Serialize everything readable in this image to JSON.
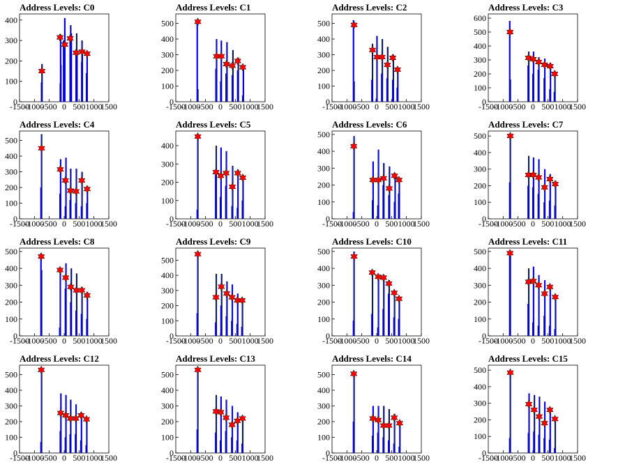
{
  "chart_data": [
    {
      "type": "bar",
      "title": "Address Levels: C0",
      "xlim": [
        -1500,
        1500
      ],
      "ylim": [
        0,
        430
      ],
      "yticks": [
        0,
        100,
        200,
        300,
        400
      ],
      "xticks": [
        -1500,
        -1000,
        -500,
        0,
        500,
        1000,
        1500
      ],
      "bars": {
        "x": [
          -760,
          -745,
          -130,
          -120,
          -110,
          -20,
          20,
          200,
          220,
          240,
          400,
          420,
          430,
          590,
          600,
          610,
          750,
          770
        ],
        "y": [
          95,
          185,
          90,
          330,
          180,
          300,
          410,
          300,
          375,
          335,
          250,
          335,
          240,
          195,
          300,
          240,
          140,
          240
        ]
      },
      "peaks": {
        "x": [
          -750,
          -140,
          20,
          200,
          400,
          600,
          770
        ],
        "y": [
          150,
          315,
          280,
          310,
          240,
          245,
          235
        ]
      }
    },
    {
      "type": "bar",
      "title": "Address Levels: C1",
      "xlim": [
        -1500,
        1500
      ],
      "ylim": [
        0,
        560
      ],
      "yticks": [
        0,
        100,
        200,
        300,
        400,
        500
      ],
      "xticks": [
        -1500,
        -1000,
        -500,
        0,
        500,
        1000,
        1500
      ],
      "bars": {
        "x": [
          -780,
          -760,
          -150,
          -130,
          10,
          30,
          190,
          220,
          400,
          420,
          580,
          600,
          750,
          770
        ],
        "y": [
          510,
          80,
          210,
          400,
          130,
          390,
          180,
          380,
          170,
          330,
          200,
          280,
          40,
          230
        ]
      },
      "peaks": {
        "x": [
          -760,
          -130,
          30,
          200,
          400,
          580,
          750
        ],
        "y": [
          510,
          290,
          290,
          240,
          230,
          260,
          220
        ]
      }
    },
    {
      "type": "bar",
      "title": "Address Levels: C2",
      "xlim": [
        -1500,
        1500
      ],
      "ylim": [
        0,
        560
      ],
      "yticks": [
        0,
        100,
        200,
        300,
        400,
        500
      ],
      "xticks": [
        -1500,
        -1000,
        -500,
        0,
        500,
        1000,
        1500
      ],
      "bars": {
        "x": [
          -780,
          -760,
          -160,
          -140,
          -10,
          10,
          170,
          190,
          350,
          370,
          540,
          560,
          690,
          710
        ],
        "y": [
          520,
          130,
          140,
          370,
          20,
          420,
          180,
          400,
          150,
          350,
          140,
          300,
          90,
          210
        ]
      },
      "peaks": {
        "x": [
          -760,
          -140,
          10,
          180,
          360,
          540,
          700
        ],
        "y": [
          490,
          330,
          285,
          285,
          235,
          280,
          205
        ]
      }
    },
    {
      "type": "bar",
      "title": "Address Levels: C3",
      "xlim": [
        -1500,
        1500
      ],
      "ylim": [
        0,
        630
      ],
      "yticks": [
        0,
        100,
        200,
        300,
        400,
        500,
        600
      ],
      "xticks": [
        -1500,
        -1000,
        -500,
        0,
        500,
        1000,
        1500
      ],
      "bars": {
        "x": [
          -780,
          -760,
          -160,
          -140,
          0,
          20,
          180,
          200,
          380,
          400,
          570,
          590,
          720,
          740
        ],
        "y": [
          580,
          160,
          260,
          360,
          200,
          360,
          230,
          320,
          170,
          310,
          90,
          280,
          70,
          220
        ]
      },
      "peaks": {
        "x": [
          -770,
          -150,
          10,
          190,
          390,
          580,
          730
        ],
        "y": [
          500,
          315,
          305,
          285,
          265,
          255,
          200
        ]
      }
    },
    {
      "type": "bar",
      "title": "Address Levels: C4",
      "xlim": [
        -1500,
        1500
      ],
      "ylim": [
        0,
        560
      ],
      "yticks": [
        0,
        100,
        200,
        300,
        400,
        500
      ],
      "xticks": [
        -1500,
        -1000,
        -500,
        0,
        500,
        1000,
        1500
      ],
      "bars": {
        "x": [
          -780,
          -760,
          -140,
          -120,
          40,
          60,
          200,
          220,
          390,
          410,
          580,
          600,
          760,
          780
        ],
        "y": [
          200,
          540,
          160,
          380,
          80,
          390,
          120,
          320,
          100,
          320,
          80,
          300,
          100,
          210
        ]
      },
      "peaks": {
        "x": [
          -760,
          -130,
          40,
          210,
          400,
          590,
          770
        ],
        "y": [
          450,
          315,
          245,
          180,
          175,
          245,
          190
        ]
      }
    },
    {
      "type": "bar",
      "title": "Address Levels: C5",
      "xlim": [
        -1500,
        1500
      ],
      "ylim": [
        0,
        480
      ],
      "yticks": [
        0,
        100,
        200,
        300,
        400
      ],
      "xticks": [
        -1500,
        -1000,
        -500,
        0,
        500,
        1000,
        1500
      ],
      "bars": {
        "x": [
          -780,
          -760,
          -160,
          -140,
          0,
          20,
          180,
          200,
          390,
          410,
          570,
          590,
          740,
          760
        ],
        "y": [
          50,
          450,
          240,
          400,
          120,
          390,
          180,
          370,
          70,
          290,
          60,
          270,
          100,
          240
        ]
      },
      "peaks": {
        "x": [
          -760,
          -150,
          10,
          190,
          400,
          580,
          750
        ],
        "y": [
          450,
          255,
          235,
          250,
          175,
          250,
          225
        ]
      }
    },
    {
      "type": "bar",
      "title": "Address Levels: C6",
      "xlim": [
        -1500,
        1500
      ],
      "ylim": [
        0,
        520
      ],
      "yticks": [
        0,
        100,
        200,
        300,
        400,
        500
      ],
      "xticks": [
        -1500,
        -1000,
        -500,
        0,
        500,
        1000,
        1500
      ],
      "bars": {
        "x": [
          -780,
          -760,
          -140,
          -120,
          40,
          60,
          220,
          240,
          410,
          430,
          600,
          620,
          740,
          760
        ],
        "y": [
          40,
          490,
          110,
          340,
          80,
          410,
          200,
          330,
          140,
          310,
          100,
          270,
          150,
          240
        ]
      },
      "peaks": {
        "x": [
          -770,
          -130,
          50,
          230,
          420,
          600,
          750
        ],
        "y": [
          430,
          230,
          230,
          240,
          180,
          255,
          230
        ]
      }
    },
    {
      "type": "bar",
      "title": "Address Levels: C7",
      "xlim": [
        -1500,
        1500
      ],
      "ylim": [
        0,
        530
      ],
      "yticks": [
        0,
        100,
        200,
        300,
        400,
        500
      ],
      "xticks": [
        -1500,
        -1000,
        -500,
        0,
        500,
        1000,
        1500
      ],
      "bars": {
        "x": [
          -780,
          -760,
          -160,
          -140,
          0,
          20,
          180,
          200,
          380,
          400,
          560,
          580,
          740,
          760
        ],
        "y": [
          220,
          500,
          200,
          380,
          190,
          370,
          150,
          360,
          100,
          300,
          110,
          270,
          80,
          230
        ]
      },
      "peaks": {
        "x": [
          -760,
          -150,
          10,
          190,
          390,
          570,
          750
        ],
        "y": [
          500,
          265,
          265,
          250,
          190,
          240,
          210
        ]
      }
    },
    {
      "type": "bar",
      "title": "Address Levels: C8",
      "xlim": [
        -1500,
        1500
      ],
      "ylim": [
        0,
        520
      ],
      "yticks": [
        0,
        100,
        200,
        300,
        400,
        500
      ],
      "xticks": [
        -1500,
        -1000,
        -500,
        0,
        500,
        1000,
        1500
      ],
      "bars": {
        "x": [
          -780,
          -760,
          -150,
          -130,
          40,
          60,
          220,
          240,
          400,
          420,
          580,
          600,
          760,
          780
        ],
        "y": [
          490,
          390,
          50,
          390,
          280,
          430,
          200,
          400,
          150,
          370,
          130,
          290,
          100,
          260
        ]
      },
      "peaks": {
        "x": [
          -770,
          -140,
          50,
          220,
          410,
          590,
          770
        ],
        "y": [
          470,
          390,
          345,
          290,
          270,
          270,
          240
        ]
      }
    },
    {
      "type": "bar",
      "title": "Address Levels: C9",
      "xlim": [
        -1500,
        1500
      ],
      "ylim": [
        0,
        580
      ],
      "yticks": [
        0,
        100,
        200,
        300,
        400,
        500
      ],
      "xticks": [
        -1500,
        -1000,
        -500,
        0,
        500,
        1000,
        1500
      ],
      "bars": {
        "x": [
          -780,
          -760,
          -160,
          -140,
          20,
          40,
          200,
          220,
          380,
          400,
          560,
          580,
          720,
          740
        ],
        "y": [
          150,
          560,
          90,
          410,
          200,
          410,
          130,
          360,
          100,
          340,
          80,
          280,
          60,
          240
        ]
      },
      "peaks": {
        "x": [
          -760,
          -150,
          30,
          210,
          390,
          570,
          730
        ],
        "y": [
          540,
          255,
          325,
          280,
          255,
          235,
          235
        ]
      }
    },
    {
      "type": "bar",
      "title": "Address Levels: C10",
      "xlim": [
        -1500,
        1500
      ],
      "ylim": [
        0,
        520
      ],
      "yticks": [
        0,
        100,
        200,
        300,
        400,
        500
      ],
      "xticks": [
        -1500,
        -1000,
        -500,
        0,
        500,
        1000,
        1500
      ],
      "bars": {
        "x": [
          -780,
          -760,
          -160,
          -140,
          40,
          60,
          220,
          240,
          400,
          420,
          580,
          600,
          740,
          760
        ],
        "y": [
          90,
          500,
          130,
          380,
          50,
          350,
          160,
          360,
          250,
          330,
          110,
          270,
          100,
          220
        ]
      },
      "peaks": {
        "x": [
          -760,
          -150,
          50,
          230,
          410,
          590,
          750
        ],
        "y": [
          470,
          375,
          350,
          345,
          310,
          255,
          220
        ]
      }
    },
    {
      "type": "bar",
      "title": "Address Levels: C11",
      "xlim": [
        -1500,
        1500
      ],
      "ylim": [
        0,
        520
      ],
      "yticks": [
        0,
        100,
        200,
        300,
        400,
        500
      ],
      "xticks": [
        -1500,
        -1000,
        -500,
        0,
        500,
        1000,
        1500
      ],
      "bars": {
        "x": [
          -780,
          -760,
          -160,
          -140,
          0,
          20,
          180,
          200,
          380,
          400,
          560,
          580,
          740,
          760
        ],
        "y": [
          490,
          490,
          190,
          400,
          80,
          410,
          60,
          360,
          120,
          330,
          60,
          300,
          40,
          230
        ]
      },
      "peaks": {
        "x": [
          -770,
          -150,
          10,
          190,
          390,
          570,
          750
        ],
        "y": [
          490,
          320,
          325,
          300,
          250,
          290,
          230
        ]
      }
    },
    {
      "type": "bar",
      "title": "Address Levels: C12",
      "xlim": [
        -1500,
        1500
      ],
      "ylim": [
        0,
        560
      ],
      "yticks": [
        0,
        100,
        200,
        300,
        400,
        500
      ],
      "xticks": [
        -1500,
        -1000,
        -500,
        0,
        500,
        1000,
        1500
      ],
      "bars": {
        "x": [
          -780,
          -760,
          -130,
          -110,
          40,
          60,
          200,
          220,
          380,
          400,
          560,
          580,
          740,
          760
        ],
        "y": [
          70,
          530,
          140,
          380,
          100,
          370,
          120,
          340,
          120,
          310,
          80,
          260,
          50,
          220
        ]
      },
      "peaks": {
        "x": [
          -770,
          -120,
          50,
          210,
          390,
          570,
          750
        ],
        "y": [
          530,
          255,
          240,
          220,
          220,
          240,
          215
        ]
      }
    },
    {
      "type": "bar",
      "title": "Address Levels: C13",
      "xlim": [
        -1500,
        1500
      ],
      "ylim": [
        0,
        560
      ],
      "yticks": [
        0,
        100,
        200,
        300,
        400,
        500
      ],
      "xticks": [
        -1500,
        -1000,
        -500,
        0,
        500,
        1000,
        1500
      ],
      "bars": {
        "x": [
          -780,
          -760,
          -160,
          -140,
          0,
          20,
          180,
          200,
          380,
          400,
          560,
          580,
          730,
          750
        ],
        "y": [
          150,
          530,
          130,
          370,
          80,
          360,
          140,
          340,
          100,
          300,
          80,
          260,
          60,
          210
        ]
      },
      "peaks": {
        "x": [
          -760,
          -150,
          10,
          190,
          390,
          570,
          740
        ],
        "y": [
          530,
          265,
          260,
          225,
          180,
          205,
          220
        ]
      }
    },
    {
      "type": "bar",
      "title": "Address Levels: C14",
      "xlim": [
        -1500,
        1500
      ],
      "ylim": [
        0,
        560
      ],
      "yticks": [
        0,
        100,
        200,
        300,
        400,
        500
      ],
      "xticks": [
        -1500,
        -1000,
        -500,
        0,
        500,
        1000,
        1500
      ],
      "bars": {
        "x": [
          -780,
          -760,
          -140,
          -120,
          40,
          60,
          220,
          240,
          400,
          420,
          580,
          600,
          760,
          780
        ],
        "y": [
          200,
          520,
          110,
          300,
          130,
          300,
          100,
          300,
          80,
          280,
          60,
          250,
          40,
          210
        ]
      },
      "peaks": {
        "x": [
          -770,
          -130,
          50,
          230,
          410,
          590,
          770
        ],
        "y": [
          505,
          220,
          210,
          175,
          175,
          225,
          190
        ]
      }
    },
    {
      "type": "bar",
      "title": "Address Levels: C15",
      "xlim": [
        -1500,
        1500
      ],
      "ylim": [
        0,
        530
      ],
      "yticks": [
        0,
        100,
        200,
        300,
        400,
        500
      ],
      "xticks": [
        -1500,
        -1000,
        -500,
        0,
        500,
        1000,
        1500
      ],
      "bars": {
        "x": [
          -780,
          -760,
          -150,
          -130,
          30,
          50,
          200,
          220,
          380,
          400,
          560,
          580,
          730,
          750
        ],
        "y": [
          90,
          500,
          120,
          360,
          130,
          350,
          110,
          340,
          90,
          310,
          80,
          270,
          30,
          210
        ]
      },
      "peaks": {
        "x": [
          -760,
          -140,
          40,
          210,
          390,
          570,
          740
        ],
        "y": [
          485,
          295,
          260,
          220,
          180,
          260,
          205
        ]
      }
    }
  ],
  "colors": {
    "bars": "#0000ee",
    "peaks": "#ff0000",
    "axes": "#000000"
  }
}
